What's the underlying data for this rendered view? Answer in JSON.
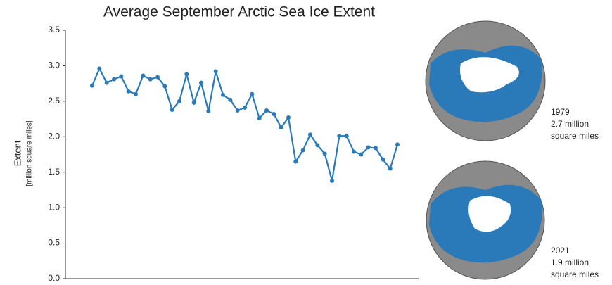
{
  "chart_data": {
    "type": "line",
    "title": "Average September Arctic Sea Ice Extent",
    "y_label": "Extent",
    "y_sublabel": "[million square miles]",
    "values": [
      2.72,
      2.96,
      2.76,
      2.81,
      2.85,
      2.64,
      2.6,
      2.86,
      2.81,
      2.84,
      2.71,
      2.38,
      2.5,
      2.88,
      2.48,
      2.76,
      2.36,
      2.92,
      2.59,
      2.52,
      2.37,
      2.41,
      2.6,
      2.26,
      2.37,
      2.32,
      2.13,
      2.27,
      1.65,
      1.81,
      2.03,
      1.88,
      1.76,
      1.38,
      2.01,
      2.01,
      1.79,
      1.75,
      1.85,
      1.84,
      1.68,
      1.55,
      1.89
    ],
    "color": "#2a7ab9",
    "ylim": [
      0,
      3.5
    ],
    "yticks": [
      {
        "value": 0,
        "label": "0.0"
      },
      0.5,
      {
        "value": 1,
        "label": "1.0"
      },
      1.5,
      {
        "value": 2,
        "label": "2.0"
      },
      2.5,
      {
        "value": 3,
        "label": "3.0"
      },
      3.5
    ],
    "grid": false
  },
  "maps": [
    {
      "lines": [
        "1979",
        "2.7 million",
        "square miles"
      ]
    },
    {
      "lines": [
        "2021",
        "1.9 million",
        "square miles"
      ]
    }
  ]
}
